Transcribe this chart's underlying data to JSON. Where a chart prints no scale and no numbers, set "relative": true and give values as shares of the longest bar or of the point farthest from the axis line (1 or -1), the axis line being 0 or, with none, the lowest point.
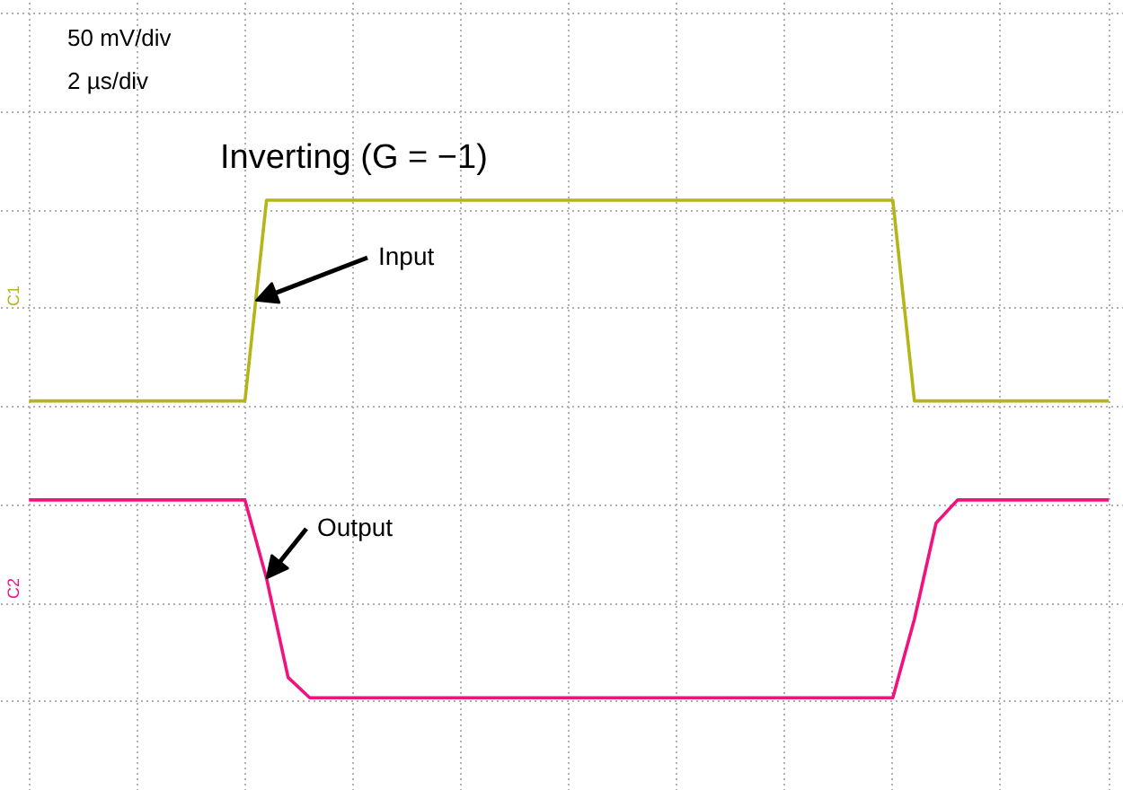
{
  "chart_data": {
    "type": "line",
    "relative": true,
    "title": "Inverting (G = −1)",
    "categories": [
      null,
      null,
      null,
      null,
      null,
      null,
      null,
      null,
      null,
      null,
      null,
      null,
      null,
      null,
      null,
      null,
      null,
      null,
      null,
      null,
      null,
      null,
      null,
      null,
      null,
      null,
      null,
      null,
      null,
      null,
      null,
      null,
      null,
      null,
      null,
      null,
      null,
      null,
      null,
      null,
      null,
      null,
      null,
      null,
      null,
      null,
      null,
      null,
      null,
      null,
      null
    ],
    "series": [
      {
        "name": "Input",
        "color": "#b5b518",
        "values": [
          0.02,
          0.02,
          0.02,
          0.02,
          0.02,
          0.02,
          0.02,
          0.02,
          0.02,
          0.02,
          0.02,
          0.71,
          0.71,
          0.71,
          0.71,
          0.71,
          0.71,
          0.71,
          0.71,
          0.71,
          0.71,
          0.71,
          0.71,
          0.71,
          0.71,
          0.71,
          0.71,
          0.71,
          0.71,
          0.71,
          0.71,
          0.71,
          0.71,
          0.71,
          0.71,
          0.71,
          0.71,
          0.71,
          0.71,
          0.71,
          0.71,
          0.02,
          0.02,
          0.02,
          0.02,
          0.02,
          0.02,
          0.02,
          0.02,
          0.02,
          0.02
        ]
      },
      {
        "name": "Output",
        "color": "#f0127f",
        "values": [
          -0.32,
          -0.32,
          -0.32,
          -0.32,
          -0.32,
          -0.32,
          -0.32,
          -0.32,
          -0.32,
          -0.32,
          -0.32,
          -0.59,
          -0.93,
          -1,
          -1,
          -1,
          -1,
          -1,
          -1,
          -1,
          -1,
          -1,
          -1,
          -1,
          -1,
          -1,
          -1,
          -1,
          -1,
          -1,
          -1,
          -1,
          -1,
          -1,
          -1,
          -1,
          -1,
          -1,
          -1,
          -1,
          -1,
          -0.73,
          -0.4,
          -0.32,
          -0.32,
          -0.32,
          -0.32,
          -0.32,
          -0.32,
          -0.32,
          -0.32
        ]
      }
    ],
    "annotations": [
      "50 mV/div",
      "2 µs/div",
      "C1",
      "C2"
    ],
    "grid": true,
    "line_style": "solid",
    "marker": "none"
  }
}
